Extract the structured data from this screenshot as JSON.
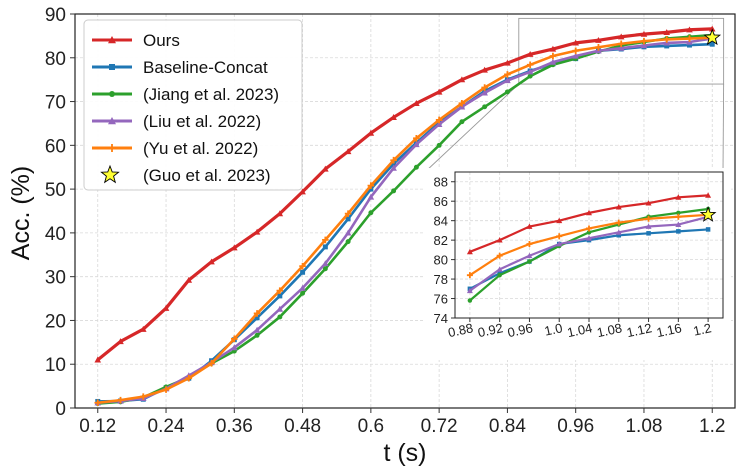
{
  "chart_data": {
    "type": "line",
    "title": "",
    "xlabel": "t (s)",
    "ylabel": "Acc. (%)",
    "xlim": [
      0.08,
      1.24
    ],
    "ylim": [
      0,
      90
    ],
    "xticks": [
      "0.12",
      "0.24",
      "0.36",
      "0.48",
      "0.6",
      "0.72",
      "0.84",
      "0.96",
      "1.08",
      "1.2"
    ],
    "yticks": [
      "0",
      "10",
      "20",
      "30",
      "40",
      "50",
      "60",
      "70",
      "80",
      "90"
    ],
    "grid": true,
    "legend_position": "top-left",
    "x": [
      0.12,
      0.16,
      0.2,
      0.24,
      0.28,
      0.32,
      0.36,
      0.4,
      0.44,
      0.48,
      0.52,
      0.56,
      0.6,
      0.64,
      0.68,
      0.72,
      0.76,
      0.8,
      0.84,
      0.88,
      0.92,
      0.96,
      1.0,
      1.04,
      1.08,
      1.12,
      1.16,
      1.2
    ],
    "series": [
      {
        "name": "Ours",
        "color": "#d62728",
        "marker": "triangle",
        "values": [
          11,
          15.2,
          18,
          22.8,
          29.2,
          33.4,
          36.6,
          40.2,
          44.4,
          49.4,
          54.6,
          58.6,
          62.8,
          66.4,
          69.6,
          72.2,
          75.0,
          77.2,
          78.8,
          80.8,
          82.0,
          83.4,
          84.0,
          84.8,
          85.4,
          85.8,
          86.4,
          86.6
        ]
      },
      {
        "name": "Baseline-Concat",
        "color": "#1f77b4",
        "marker": "square",
        "values": [
          1.5,
          1.6,
          2.0,
          4.6,
          6.8,
          10.8,
          15.6,
          20.6,
          25.6,
          31.0,
          36.8,
          43.2,
          50.0,
          55.8,
          60.6,
          65.2,
          68.8,
          72.4,
          75.0,
          77.0,
          78.6,
          79.8,
          81.6,
          82.0,
          82.5,
          82.7,
          82.9,
          83.1
        ]
      },
      {
        "name": "(Jiang et al. 2023)",
        "color": "#2ca02c",
        "marker": "dot",
        "values": [
          1.0,
          1.4,
          2.4,
          4.8,
          7.0,
          10.2,
          13.0,
          16.6,
          20.8,
          26.2,
          31.8,
          38.0,
          44.6,
          49.6,
          55.0,
          60.0,
          65.4,
          68.8,
          72.2,
          75.8,
          78.4,
          79.8,
          81.4,
          82.8,
          83.6,
          84.4,
          84.8,
          85.2
        ]
      },
      {
        "name": "(Liu et al. 2022)",
        "color": "#9467bd",
        "marker": "triangle",
        "values": [
          1.2,
          1.6,
          2.2,
          4.4,
          7.4,
          10.4,
          13.8,
          17.8,
          22.6,
          27.4,
          33.0,
          40.0,
          48.2,
          54.8,
          60.2,
          64.8,
          68.8,
          72.0,
          74.8,
          76.8,
          79.0,
          80.4,
          81.6,
          82.2,
          82.8,
          83.4,
          83.6,
          84.4
        ]
      },
      {
        "name": "(Yu et al. 2022)",
        "color": "#ff7f0e",
        "marker": "plus",
        "values": [
          1.2,
          1.8,
          2.6,
          4.2,
          6.8,
          10.2,
          15.8,
          21.6,
          26.8,
          32.4,
          38.4,
          44.4,
          50.8,
          56.6,
          61.6,
          65.8,
          69.6,
          73.2,
          76.2,
          78.4,
          80.4,
          81.6,
          82.4,
          83.2,
          83.8,
          84.2,
          84.4,
          84.6
        ]
      },
      {
        "name": "(Guo et al. 2023)",
        "color": "#ffff33",
        "marker": "star",
        "points": [
          [
            1.2,
            84.6
          ]
        ]
      }
    ],
    "inset": {
      "xlim": [
        0.86,
        1.22
      ],
      "ylim": [
        74,
        89
      ],
      "xticks": [
        "0.88",
        "0.92",
        "0.96",
        "1.0",
        "1.04",
        "1.08",
        "1.12",
        "1.16",
        "1.2"
      ],
      "yticks": [
        "74",
        "76",
        "78",
        "80",
        "82",
        "84",
        "86",
        "88"
      ],
      "x": [
        0.88,
        0.92,
        0.96,
        1.0,
        1.04,
        1.08,
        1.12,
        1.16,
        1.2
      ]
    }
  }
}
